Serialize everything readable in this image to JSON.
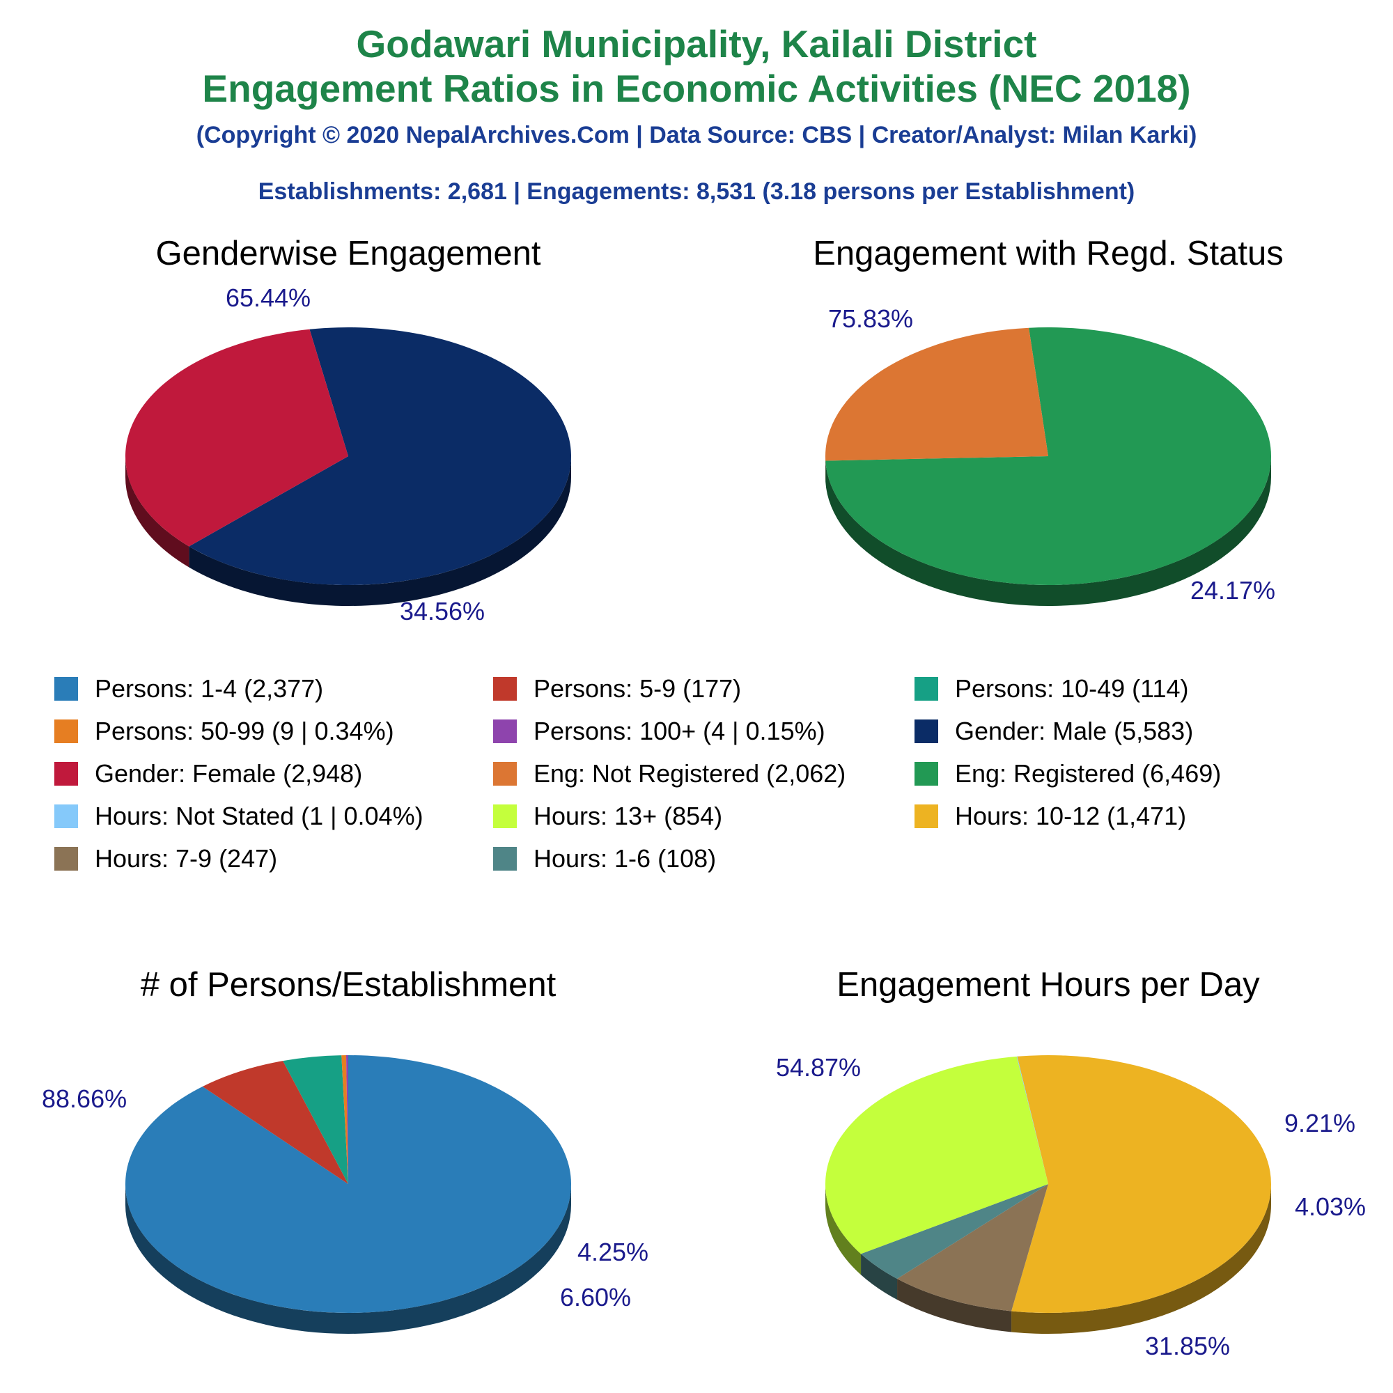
{
  "header": {
    "title_line1": "Godawari Municipality, Kailali District",
    "title_line2": "Engagement Ratios in Economic Activities (NEC 2018)",
    "copyright": "(Copyright © 2020 NepalArchives.Com | Data Source: CBS | Creator/Analyst: Milan Karki)",
    "summary": "Establishments: 2,681 | Engagements: 8,531 (3.18 persons per Establishment)"
  },
  "legend": [
    {
      "label": "Persons: 1-4 (2,377)",
      "color": "#2a7db8"
    },
    {
      "label": "Persons: 5-9 (177)",
      "color": "#c0392b"
    },
    {
      "label": "Persons: 10-49 (114)",
      "color": "#16a085"
    },
    {
      "label": "Persons: 50-99 (9 | 0.34%)",
      "color": "#e67e22"
    },
    {
      "label": "Persons: 100+ (4 | 0.15%)",
      "color": "#8e44ad"
    },
    {
      "label": "Gender: Male (5,583)",
      "color": "#0b2c66"
    },
    {
      "label": "Gender: Female (2,948)",
      "color": "#c0193c"
    },
    {
      "label": "Eng: Not Registered (2,062)",
      "color": "#dc7633"
    },
    {
      "label": "Eng: Registered (6,469)",
      "color": "#229954"
    },
    {
      "label": "Hours: Not Stated (1 | 0.04%)",
      "color": "#85c9fa"
    },
    {
      "label": "Hours: 13+ (854)",
      "color": "#c4ff3c"
    },
    {
      "label": "Hours: 10-12 (1,471)",
      "color": "#edb322"
    },
    {
      "label": "Hours: 7-9 (247)",
      "color": "#8b7355"
    },
    {
      "label": "Hours: 1-6 (108)",
      "color": "#4f8587"
    }
  ],
  "chart_data": [
    {
      "type": "pie",
      "title": "Genderwise Engagement",
      "series": [
        {
          "name": "Gender: Male",
          "value": 5583,
          "label": "65.44%",
          "color": "#0b2c66"
        },
        {
          "name": "Gender: Female",
          "value": 2948,
          "label": "34.56%",
          "color": "#c0193c"
        }
      ]
    },
    {
      "type": "pie",
      "title": "Engagement with Regd. Status",
      "series": [
        {
          "name": "Eng: Registered",
          "value": 6469,
          "label": "75.83%",
          "color": "#229954"
        },
        {
          "name": "Eng: Not Registered",
          "value": 2062,
          "label": "24.17%",
          "color": "#dc7633"
        }
      ]
    },
    {
      "type": "pie",
      "title": "# of Persons/Establishment",
      "series": [
        {
          "name": "Persons: 1-4",
          "value": 2377,
          "label": "88.66%",
          "color": "#2a7db8"
        },
        {
          "name": "Persons: 5-9",
          "value": 177,
          "label": "6.60%",
          "color": "#c0392b"
        },
        {
          "name": "Persons: 10-49",
          "value": 114,
          "label": "4.25%",
          "color": "#16a085"
        },
        {
          "name": "Persons: 50-99",
          "value": 9,
          "label": "",
          "color": "#e67e22"
        },
        {
          "name": "Persons: 100+",
          "value": 4,
          "label": "",
          "color": "#8e44ad"
        }
      ]
    },
    {
      "type": "pie",
      "title": "Engagement Hours per Day",
      "series": [
        {
          "name": "Hours: 10-12",
          "value": 1471,
          "label": "54.87%",
          "color": "#edb322"
        },
        {
          "name": "Hours: 7-9",
          "value": 247,
          "label": "9.21%",
          "color": "#8b7355"
        },
        {
          "name": "Hours: 1-6",
          "value": 108,
          "label": "4.03%",
          "color": "#4f8587"
        },
        {
          "name": "Hours: 13+",
          "value": 854,
          "label": "31.85%",
          "color": "#c4ff3c"
        },
        {
          "name": "Hours: Not Stated",
          "value": 1,
          "label": "",
          "color": "#85c9fa"
        }
      ]
    }
  ]
}
